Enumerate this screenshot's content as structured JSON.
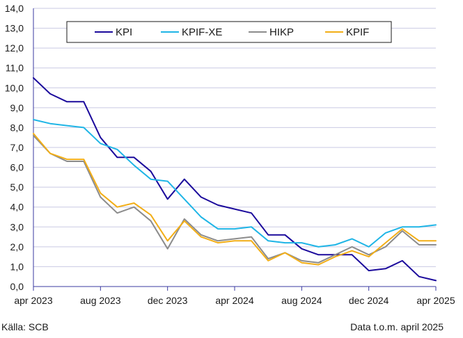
{
  "footer": {
    "source": "Källa: SCB",
    "note": "Data t.o.m. april 2025"
  },
  "chart_data": {
    "type": "line",
    "title": "",
    "xlabel": "",
    "ylabel": "",
    "ylim": [
      0,
      14
    ],
    "yticks": [
      "0,0",
      "1,0",
      "2,0",
      "3,0",
      "4,0",
      "5,0",
      "6,0",
      "7,0",
      "8,0",
      "9,0",
      "10,0",
      "11,0",
      "12,0",
      "13,0",
      "14,0"
    ],
    "x": [
      "2023-04",
      "2023-05",
      "2023-06",
      "2023-07",
      "2023-08",
      "2023-09",
      "2023-10",
      "2023-11",
      "2023-12",
      "2024-01",
      "2024-02",
      "2024-03",
      "2024-04",
      "2024-05",
      "2024-06",
      "2024-07",
      "2024-08",
      "2024-09",
      "2024-10",
      "2024-11",
      "2024-12",
      "2025-01",
      "2025-02",
      "2025-03",
      "2025-04"
    ],
    "xtick_labels": [
      {
        "index": 0,
        "label": "apr 2023"
      },
      {
        "index": 4,
        "label": "aug 2023"
      },
      {
        "index": 8,
        "label": "dec 2023"
      },
      {
        "index": 12,
        "label": "apr 2024"
      },
      {
        "index": 16,
        "label": "aug 2024"
      },
      {
        "index": 20,
        "label": "dec 2024"
      },
      {
        "index": 24,
        "label": "apr 2025"
      }
    ],
    "grid": true,
    "legend": "top, boxed, horizontal",
    "series": [
      {
        "name": "KPI",
        "color": "#1b0a9c",
        "values": [
          10.5,
          9.7,
          9.3,
          9.3,
          7.5,
          6.5,
          6.5,
          5.8,
          4.4,
          5.4,
          4.5,
          4.1,
          3.9,
          3.7,
          2.6,
          2.6,
          1.9,
          1.6,
          1.6,
          1.6,
          0.8,
          0.9,
          1.3,
          0.5,
          0.3
        ]
      },
      {
        "name": "KPIF-XE",
        "color": "#1fb5e6",
        "values": [
          8.4,
          8.2,
          8.1,
          8.0,
          7.2,
          6.9,
          6.1,
          5.4,
          5.3,
          4.4,
          3.5,
          2.9,
          2.9,
          3.0,
          2.3,
          2.2,
          2.2,
          2.0,
          2.1,
          2.4,
          2.0,
          2.7,
          3.0,
          3.0,
          3.1
        ]
      },
      {
        "name": "HIKP",
        "color": "#8c8c8c",
        "values": [
          7.6,
          6.7,
          6.3,
          6.3,
          4.5,
          3.7,
          4.0,
          3.3,
          1.9,
          3.4,
          2.6,
          2.3,
          2.4,
          2.5,
          1.4,
          1.7,
          1.3,
          1.2,
          1.6,
          2.0,
          1.6,
          2.0,
          2.8,
          2.1,
          2.1
        ]
      },
      {
        "name": "KPIF",
        "color": "#f2ae17",
        "values": [
          7.7,
          6.7,
          6.4,
          6.4,
          4.7,
          4.0,
          4.2,
          3.6,
          2.3,
          3.3,
          2.5,
          2.2,
          2.3,
          2.3,
          1.3,
          1.7,
          1.2,
          1.1,
          1.5,
          1.8,
          1.5,
          2.2,
          2.9,
          2.3,
          2.3
        ]
      }
    ]
  }
}
